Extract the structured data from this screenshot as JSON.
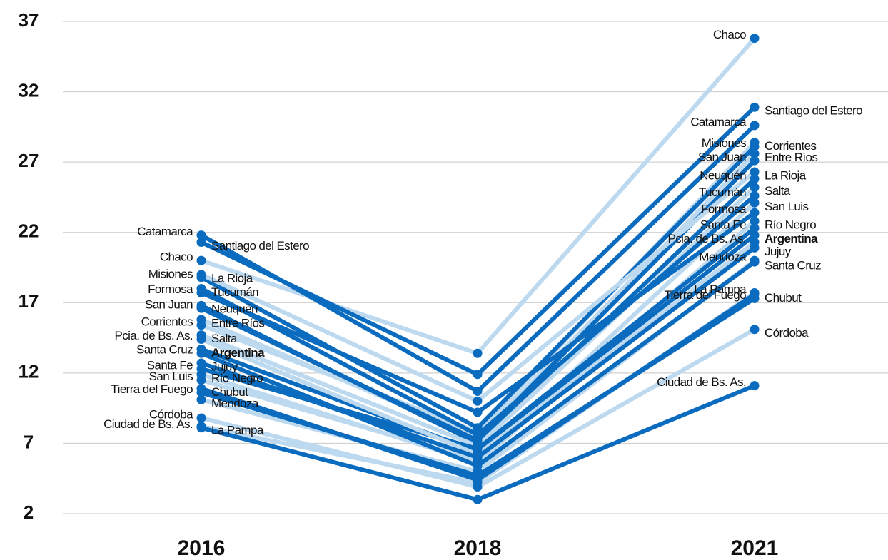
{
  "chart_data": {
    "type": "line",
    "categories": [
      "2016",
      "2018",
      "2021"
    ],
    "ylim": [
      2,
      37
    ],
    "yticks": [
      2,
      7,
      12,
      17,
      22,
      27,
      32,
      37
    ],
    "grid": true,
    "series": [
      {
        "name": "Chaco",
        "color": "#bcd9ef",
        "values": [
          20.0,
          13.4,
          35.8
        ]
      },
      {
        "name": "Santiago del Estero",
        "color": "#0b6cbf",
        "values": [
          21.3,
          11.9,
          30.9
        ]
      },
      {
        "name": "Catamarca",
        "color": "#0b6cbf",
        "values": [
          21.8,
          10.7,
          29.6
        ]
      },
      {
        "name": "Corrientes",
        "color": "#bcd9ef",
        "values": [
          15.4,
          7.8,
          28.4
        ]
      },
      {
        "name": "Misiones",
        "color": "#0b6cbf",
        "values": [
          18.8,
          8.1,
          28.1
        ]
      },
      {
        "name": "Entre Ríos",
        "color": "#bcd9ef",
        "values": [
          15.8,
          7.4,
          27.6
        ]
      },
      {
        "name": "San Juan",
        "color": "#0b6cbf",
        "values": [
          16.6,
          7.2,
          27.1
        ]
      },
      {
        "name": "La Rioja",
        "color": "#bcd9ef",
        "values": [
          19.0,
          10.0,
          26.3
        ]
      },
      {
        "name": "Neuquén",
        "color": "#0b6cbf",
        "values": [
          16.8,
          7.0,
          25.8
        ]
      },
      {
        "name": "Salta",
        "color": "#bcd9ef",
        "values": [
          14.7,
          6.8,
          25.2
        ]
      },
      {
        "name": "Tucumán",
        "color": "#0b6cbf",
        "values": [
          18.0,
          7.6,
          24.6
        ]
      },
      {
        "name": "San Luis",
        "color": "#bcd9ef",
        "values": [
          11.5,
          5.8,
          24.1
        ]
      },
      {
        "name": "Formosa",
        "color": "#0b6cbf",
        "values": [
          17.7,
          9.2,
          23.4
        ]
      },
      {
        "name": "Río Negro",
        "color": "#bcd9ef",
        "values": [
          11.9,
          5.6,
          22.8
        ]
      },
      {
        "name": "Santa Fe",
        "color": "#0b6cbf",
        "values": [
          12.3,
          6.6,
          22.3
        ]
      },
      {
        "name": "Argentina",
        "color": "#0b6cbf",
        "values": [
          13.7,
          6.4,
          21.8
        ]
      },
      {
        "name": "Pcia. de Bs. As.",
        "color": "#bcd9ef",
        "values": [
          14.4,
          6.2,
          21.3
        ]
      },
      {
        "name": "Jujuy",
        "color": "#0b6cbf",
        "values": [
          12.7,
          6.0,
          20.9
        ]
      },
      {
        "name": "Mendoza",
        "color": "#bcd9ef",
        "values": [
          10.1,
          5.0,
          20.0
        ]
      },
      {
        "name": "Santa Cruz",
        "color": "#0b6cbf",
        "values": [
          13.4,
          5.4,
          19.9
        ]
      },
      {
        "name": "La Pampa",
        "color": "#bcd9ef",
        "values": [
          8.2,
          4.2,
          17.7
        ]
      },
      {
        "name": "Chubut",
        "color": "#0b6cbf",
        "values": [
          10.9,
          4.4,
          17.6
        ]
      },
      {
        "name": "Tierra del Fuego",
        "color": "#0b6cbf",
        "values": [
          10.6,
          4.7,
          17.3
        ]
      },
      {
        "name": "Córdoba",
        "color": "#bcd9ef",
        "values": [
          8.8,
          3.9,
          15.1
        ]
      },
      {
        "name": "Ciudad de Bs. As.",
        "color": "#0b6cbf",
        "values": [
          8.1,
          3.0,
          11.1
        ]
      }
    ]
  }
}
